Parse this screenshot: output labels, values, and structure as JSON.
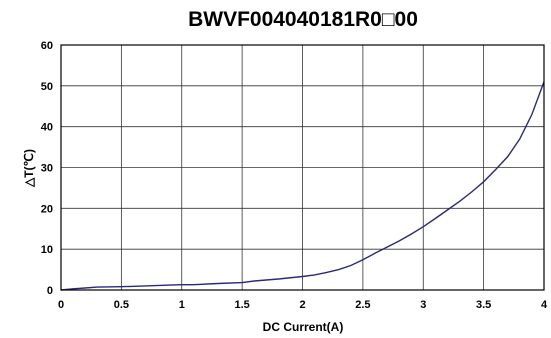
{
  "chart_data": {
    "type": "line",
    "title": "BWVF004040181R0□00",
    "xlabel": "DC Current(A)",
    "ylabel": "△T(℃)",
    "xlim": [
      0,
      4
    ],
    "ylim": [
      0,
      60
    ],
    "xticks": [
      "0",
      "0.5",
      "1",
      "1.5",
      "2",
      "2.5",
      "3",
      "3.5",
      "4"
    ],
    "yticks": [
      "0",
      "10",
      "20",
      "30",
      "40",
      "50",
      "60"
    ],
    "grid": true,
    "colors": {
      "series": "#2a2a7a"
    },
    "series": [
      {
        "x": [
          0,
          0.1,
          0.2,
          0.3,
          0.5,
          0.7,
          0.9,
          1.0,
          1.1,
          1.3,
          1.5,
          1.6,
          1.8,
          2.0,
          2.1,
          2.2,
          2.3,
          2.4,
          2.5,
          2.6,
          2.7,
          2.8,
          2.9,
          3.0,
          3.1,
          3.2,
          3.3,
          3.4,
          3.5,
          3.6,
          3.7,
          3.8,
          3.9,
          4.0
        ],
        "y": [
          0,
          0.3,
          0.5,
          0.7,
          0.8,
          1.0,
          1.2,
          1.3,
          1.3,
          1.6,
          1.8,
          2.2,
          2.7,
          3.3,
          3.7,
          4.3,
          5.0,
          6.0,
          7.4,
          9.0,
          10.5,
          12.0,
          13.7,
          15.5,
          17.5,
          19.6,
          21.7,
          24.0,
          26.5,
          29.5,
          32.7,
          37.0,
          43.0,
          51.0
        ]
      }
    ]
  }
}
